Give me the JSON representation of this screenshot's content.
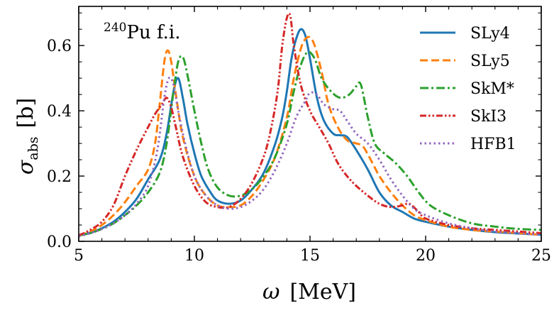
{
  "chart_data": {
    "type": "line",
    "annotation": {
      "superscript": "240",
      "text": "Pu f.i."
    },
    "xlabel": {
      "symbol": "ω",
      "unit": "[MeV]"
    },
    "ylabel": {
      "symbol": "σ",
      "subscript": "abs",
      "unit": "[b]"
    },
    "xlim": [
      5,
      25
    ],
    "ylim": [
      0,
      0.72
    ],
    "xticks": [
      5,
      10,
      15,
      20,
      25
    ],
    "yticks": [
      0.0,
      0.2,
      0.4,
      0.6
    ],
    "ytick_labels": [
      "0.0",
      "0.2",
      "0.4",
      "0.6"
    ],
    "grid": false,
    "legend_position": "top-right",
    "series": [
      {
        "name": "SLy4",
        "color": "#1f77b4",
        "dash": "solid",
        "points": [
          [
            5,
            0.018
          ],
          [
            5.5,
            0.026
          ],
          [
            6,
            0.04
          ],
          [
            6.5,
            0.06
          ],
          [
            7,
            0.09
          ],
          [
            7.5,
            0.13
          ],
          [
            8,
            0.19
          ],
          [
            8.5,
            0.25
          ],
          [
            8.8,
            0.33
          ],
          [
            9.1,
            0.46
          ],
          [
            9.3,
            0.5
          ],
          [
            9.5,
            0.44
          ],
          [
            9.7,
            0.36
          ],
          [
            10,
            0.27
          ],
          [
            10.3,
            0.2
          ],
          [
            10.7,
            0.15
          ],
          [
            11,
            0.125
          ],
          [
            11.5,
            0.115
          ],
          [
            12,
            0.125
          ],
          [
            12.5,
            0.16
          ],
          [
            13,
            0.21
          ],
          [
            13.5,
            0.3
          ],
          [
            13.8,
            0.38
          ],
          [
            14,
            0.46
          ],
          [
            14.2,
            0.56
          ],
          [
            14.4,
            0.62
          ],
          [
            14.6,
            0.65
          ],
          [
            14.8,
            0.63
          ],
          [
            15,
            0.56
          ],
          [
            15.3,
            0.44
          ],
          [
            15.6,
            0.37
          ],
          [
            16,
            0.33
          ],
          [
            16.3,
            0.325
          ],
          [
            16.6,
            0.32
          ],
          [
            17,
            0.28
          ],
          [
            17.5,
            0.22
          ],
          [
            18,
            0.15
          ],
          [
            18.5,
            0.11
          ],
          [
            19,
            0.09
          ],
          [
            19.5,
            0.07
          ],
          [
            20,
            0.06
          ],
          [
            21,
            0.045
          ],
          [
            22,
            0.035
          ],
          [
            23,
            0.028
          ],
          [
            24,
            0.024
          ],
          [
            25,
            0.02
          ]
        ]
      },
      {
        "name": "SLy5",
        "color": "#ff7f0e",
        "dash": "dashed",
        "points": [
          [
            5,
            0.018
          ],
          [
            5.5,
            0.03
          ],
          [
            6,
            0.05
          ],
          [
            6.5,
            0.08
          ],
          [
            7,
            0.12
          ],
          [
            7.5,
            0.17
          ],
          [
            8,
            0.22
          ],
          [
            8.3,
            0.3
          ],
          [
            8.5,
            0.42
          ],
          [
            8.7,
            0.55
          ],
          [
            8.85,
            0.585
          ],
          [
            9,
            0.55
          ],
          [
            9.2,
            0.45
          ],
          [
            9.5,
            0.32
          ],
          [
            10,
            0.2
          ],
          [
            10.5,
            0.14
          ],
          [
            11,
            0.11
          ],
          [
            11.5,
            0.105
          ],
          [
            12,
            0.11
          ],
          [
            12.5,
            0.14
          ],
          [
            13,
            0.19
          ],
          [
            13.5,
            0.26
          ],
          [
            14,
            0.38
          ],
          [
            14.3,
            0.5
          ],
          [
            14.6,
            0.59
          ],
          [
            14.8,
            0.62
          ],
          [
            15,
            0.625
          ],
          [
            15.2,
            0.6
          ],
          [
            15.5,
            0.52
          ],
          [
            15.8,
            0.42
          ],
          [
            16.2,
            0.35
          ],
          [
            16.6,
            0.31
          ],
          [
            17,
            0.3
          ],
          [
            17.3,
            0.29
          ],
          [
            17.7,
            0.24
          ],
          [
            18,
            0.2
          ],
          [
            18.5,
            0.15
          ],
          [
            19,
            0.11
          ],
          [
            19.5,
            0.08
          ],
          [
            20,
            0.065
          ],
          [
            21,
            0.045
          ],
          [
            22,
            0.035
          ],
          [
            23,
            0.03
          ],
          [
            24,
            0.025
          ],
          [
            25,
            0.02
          ]
        ]
      },
      {
        "name": "SkM*",
        "color": "#2ca02c",
        "dash": "dashdot",
        "points": [
          [
            5,
            0.018
          ],
          [
            5.5,
            0.025
          ],
          [
            6,
            0.038
          ],
          [
            6.5,
            0.055
          ],
          [
            7,
            0.08
          ],
          [
            7.5,
            0.11
          ],
          [
            8,
            0.15
          ],
          [
            8.5,
            0.21
          ],
          [
            8.8,
            0.3
          ],
          [
            9.1,
            0.46
          ],
          [
            9.3,
            0.55
          ],
          [
            9.5,
            0.565
          ],
          [
            9.7,
            0.51
          ],
          [
            10,
            0.4
          ],
          [
            10.3,
            0.3
          ],
          [
            10.6,
            0.22
          ],
          [
            11,
            0.165
          ],
          [
            11.5,
            0.14
          ],
          [
            12,
            0.14
          ],
          [
            12.5,
            0.16
          ],
          [
            13,
            0.2
          ],
          [
            13.5,
            0.26
          ],
          [
            14,
            0.36
          ],
          [
            14.3,
            0.46
          ],
          [
            14.6,
            0.54
          ],
          [
            14.9,
            0.58
          ],
          [
            15.2,
            0.56
          ],
          [
            15.5,
            0.5
          ],
          [
            15.9,
            0.46
          ],
          [
            16.3,
            0.44
          ],
          [
            16.7,
            0.45
          ],
          [
            17,
            0.475
          ],
          [
            17.2,
            0.48
          ],
          [
            17.5,
            0.38
          ],
          [
            17.8,
            0.3
          ],
          [
            18.2,
            0.27
          ],
          [
            18.7,
            0.24
          ],
          [
            19.2,
            0.2
          ],
          [
            19.7,
            0.15
          ],
          [
            20.2,
            0.11
          ],
          [
            21,
            0.08
          ],
          [
            22,
            0.055
          ],
          [
            23,
            0.045
          ],
          [
            24,
            0.038
          ],
          [
            25,
            0.035
          ]
        ]
      },
      {
        "name": "SkI3",
        "color": "#d62728",
        "dash": "dashdotdot",
        "points": [
          [
            5,
            0.018
          ],
          [
            5.5,
            0.035
          ],
          [
            6,
            0.06
          ],
          [
            6.5,
            0.11
          ],
          [
            7,
            0.2
          ],
          [
            7.5,
            0.28
          ],
          [
            8,
            0.35
          ],
          [
            8.3,
            0.39
          ],
          [
            8.6,
            0.42
          ],
          [
            8.8,
            0.44
          ],
          [
            9,
            0.41
          ],
          [
            9.2,
            0.35
          ],
          [
            9.5,
            0.26
          ],
          [
            10,
            0.17
          ],
          [
            10.5,
            0.12
          ],
          [
            11,
            0.105
          ],
          [
            11.5,
            0.105
          ],
          [
            12,
            0.13
          ],
          [
            12.5,
            0.18
          ],
          [
            13,
            0.26
          ],
          [
            13.3,
            0.34
          ],
          [
            13.6,
            0.46
          ],
          [
            13.8,
            0.6
          ],
          [
            14,
            0.685
          ],
          [
            14.15,
            0.69
          ],
          [
            14.3,
            0.6
          ],
          [
            14.6,
            0.48
          ],
          [
            15,
            0.4
          ],
          [
            15.4,
            0.35
          ],
          [
            15.8,
            0.3
          ],
          [
            16.2,
            0.24
          ],
          [
            16.6,
            0.2
          ],
          [
            17,
            0.17
          ],
          [
            17.5,
            0.14
          ],
          [
            18,
            0.115
          ],
          [
            18.5,
            0.105
          ],
          [
            19,
            0.11
          ],
          [
            19.3,
            0.115
          ],
          [
            19.7,
            0.09
          ],
          [
            20,
            0.07
          ],
          [
            21,
            0.05
          ],
          [
            22,
            0.04
          ],
          [
            23,
            0.035
          ],
          [
            24,
            0.03
          ],
          [
            25,
            0.025
          ]
        ]
      },
      {
        "name": "HFB1",
        "color": "#9467bd",
        "dash": "dotted",
        "points": [
          [
            5,
            0.015
          ],
          [
            5.5,
            0.025
          ],
          [
            6,
            0.038
          ],
          [
            6.5,
            0.055
          ],
          [
            7,
            0.08
          ],
          [
            7.5,
            0.115
          ],
          [
            8,
            0.17
          ],
          [
            8.4,
            0.28
          ],
          [
            8.7,
            0.44
          ],
          [
            8.9,
            0.5
          ],
          [
            9.1,
            0.48
          ],
          [
            9.3,
            0.4
          ],
          [
            9.6,
            0.3
          ],
          [
            10,
            0.2
          ],
          [
            10.5,
            0.14
          ],
          [
            11,
            0.11
          ],
          [
            11.5,
            0.1
          ],
          [
            12,
            0.105
          ],
          [
            12.5,
            0.125
          ],
          [
            13,
            0.16
          ],
          [
            13.5,
            0.22
          ],
          [
            14,
            0.3
          ],
          [
            14.4,
            0.38
          ],
          [
            14.8,
            0.43
          ],
          [
            15,
            0.455
          ],
          [
            15.3,
            0.45
          ],
          [
            15.6,
            0.42
          ],
          [
            16,
            0.405
          ],
          [
            16.3,
            0.4
          ],
          [
            16.6,
            0.37
          ],
          [
            17,
            0.33
          ],
          [
            17.5,
            0.3
          ],
          [
            18,
            0.25
          ],
          [
            18.5,
            0.19
          ],
          [
            19,
            0.14
          ],
          [
            19.5,
            0.1
          ],
          [
            20,
            0.08
          ],
          [
            21,
            0.055
          ],
          [
            22,
            0.04
          ],
          [
            23,
            0.03
          ],
          [
            24,
            0.025
          ],
          [
            25,
            0.02
          ]
        ]
      }
    ]
  }
}
